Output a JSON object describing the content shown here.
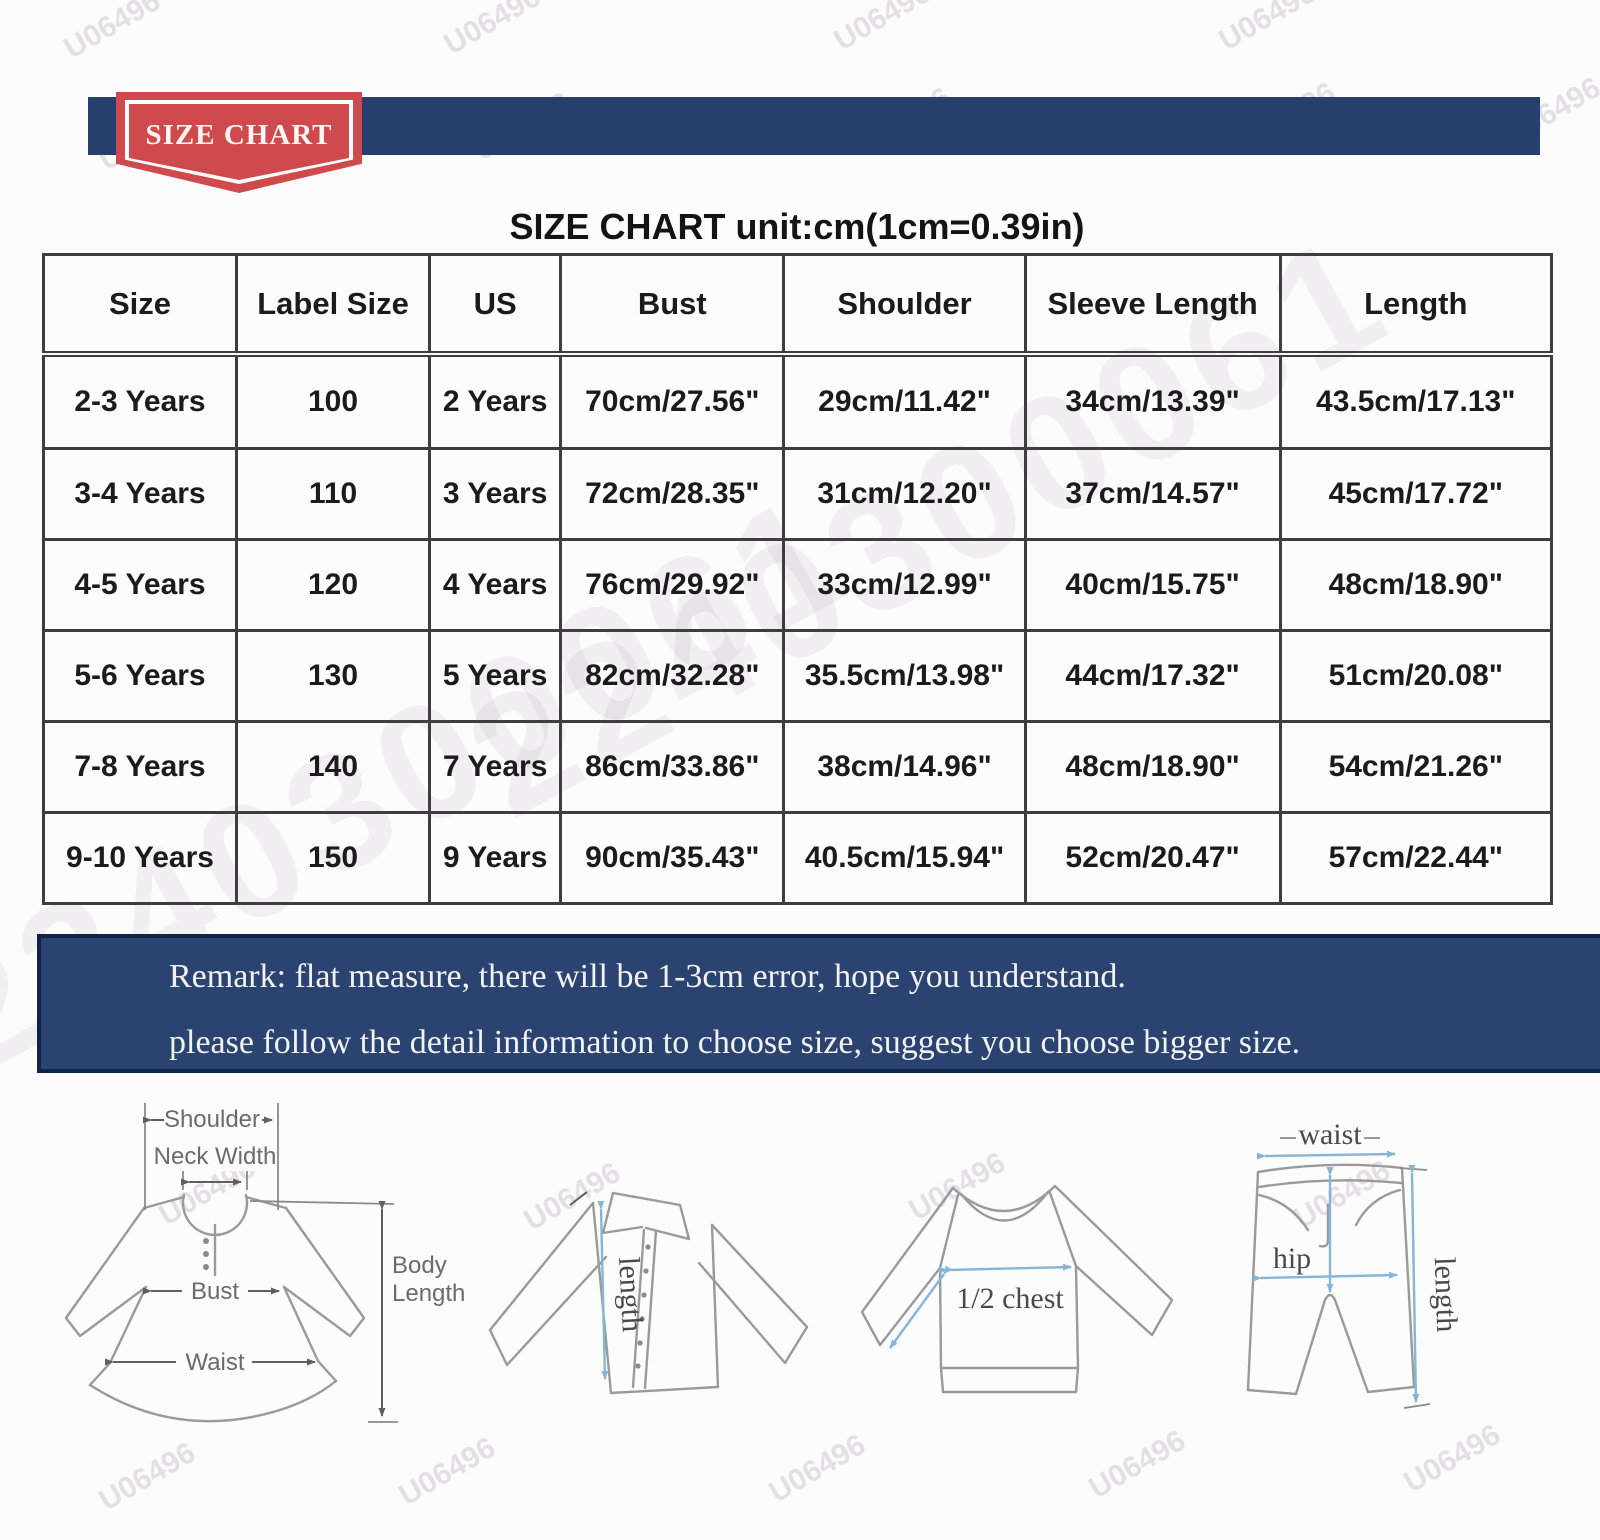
{
  "ribbon": {
    "label": "SIZE CHART"
  },
  "title": "SIZE CHART unit:cm(1cm=0.39in)",
  "table": {
    "headers": [
      "Size",
      "Label Size",
      "US",
      "Bust",
      "Shoulder",
      "Sleeve Length",
      "Length"
    ],
    "rows": [
      [
        "2-3 Years",
        "100",
        "2 Years",
        "70cm/27.56\"",
        "29cm/11.42\"",
        "34cm/13.39\"",
        "43.5cm/17.13\""
      ],
      [
        "3-4 Years",
        "110",
        "3 Years",
        "72cm/28.35\"",
        "31cm/12.20\"",
        "37cm/14.57\"",
        "45cm/17.72\""
      ],
      [
        "4-5 Years",
        "120",
        "4 Years",
        "76cm/29.92\"",
        "33cm/12.99\"",
        "40cm/15.75\"",
        "48cm/18.90\""
      ],
      [
        "5-6 Years",
        "130",
        "5 Years",
        "82cm/32.28\"",
        "35.5cm/13.98\"",
        "44cm/17.32\"",
        "51cm/20.08\""
      ],
      [
        "7-8 Years",
        "140",
        "7 Years",
        "86cm/33.86\"",
        "38cm/14.96\"",
        "48cm/18.90\"",
        "54cm/21.26\""
      ],
      [
        "9-10 Years",
        "150",
        "9 Years",
        "90cm/35.43\"",
        "40.5cm/15.94\"",
        "52cm/20.47\"",
        "57cm/22.44\""
      ]
    ]
  },
  "remark": {
    "line1": "Remark: flat measure, there will be 1-3cm error, hope you understand.",
    "line2": "please follow the detail information to choose size, suggest you choose bigger size."
  },
  "diagrams": {
    "dress": {
      "shoulder": "Shoulder",
      "neck_width": "Neck Width",
      "bust": "Bust",
      "waist": "Waist",
      "body_length_1": "Body",
      "body_length_2": "Length"
    },
    "shirt": {
      "length": "length"
    },
    "sweater": {
      "half_chest": "1/2 chest"
    },
    "pants": {
      "waist": "waist",
      "hip": "hip",
      "length": "length"
    }
  },
  "watermarks": {
    "code1": "U06496",
    "code2": "2240300061"
  },
  "colors": {
    "navy": "#26406d",
    "navy_dark": "#10234a",
    "red": "#cf4a4c",
    "arrow_blue": "#86b5d8"
  }
}
